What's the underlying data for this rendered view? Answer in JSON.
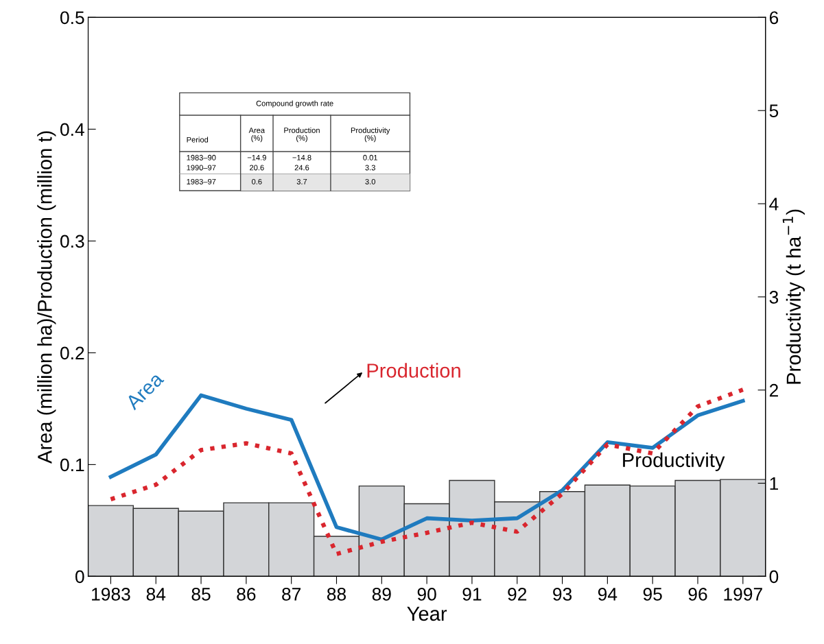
{
  "chart_data": {
    "type": "line",
    "xlabel": "Year",
    "ylabel": "Area (million ha)/Production (million t)",
    "y2label": "Productivity (t ha$^{−1}$)",
    "categories": [
      "1983",
      "84",
      "85",
      "86",
      "87",
      "88",
      "89",
      "90",
      "91",
      "92",
      "93",
      "94",
      "95",
      "96",
      "1997"
    ],
    "ylim": [
      0,
      0.5
    ],
    "yticks": [
      0,
      0.1,
      0.2,
      0.3,
      0.4,
      0.5
    ],
    "y2lim": [
      0,
      6
    ],
    "y2ticks": [
      0,
      1,
      2,
      3,
      4,
      5,
      6
    ],
    "grid": false,
    "legend": false,
    "marker": "none",
    "series": [
      {
        "name": "Productivity",
        "type": "bar",
        "axis": "y2",
        "color": "#d3d5d8",
        "values": [
          0.76,
          0.73,
          0.7,
          0.79,
          0.79,
          0.43,
          0.97,
          0.78,
          1.03,
          0.8,
          0.91,
          0.98,
          0.97,
          1.03,
          1.04
        ]
      },
      {
        "name": "Area",
        "color": "#1f7bbf",
        "line_style": "solid",
        "values": [
          0.089,
          0.109,
          0.162,
          0.15,
          0.14,
          0.044,
          0.033,
          0.052,
          0.05,
          0.052,
          0.077,
          0.12,
          0.115,
          0.144,
          0.157
        ]
      },
      {
        "name": "Production",
        "color": "#d9262e",
        "line_style": "dotted",
        "values": [
          0.069,
          0.082,
          0.113,
          0.119,
          0.11,
          0.02,
          0.031,
          0.039,
          0.048,
          0.04,
          0.074,
          0.118,
          0.11,
          0.152,
          0.167
        ]
      }
    ],
    "annotations": [
      "Compound growth rate",
      "Period",
      "Area\n(%)",
      "Production\n(%)",
      "Productivity\n(%)",
      "1983–90",
      "−14.9",
      "−14.8",
      "0.01",
      "1990–97",
      "20.6",
      "24.6",
      "3.3",
      "1983–97",
      "0.6",
      "3.7",
      "3.0"
    ]
  }
}
